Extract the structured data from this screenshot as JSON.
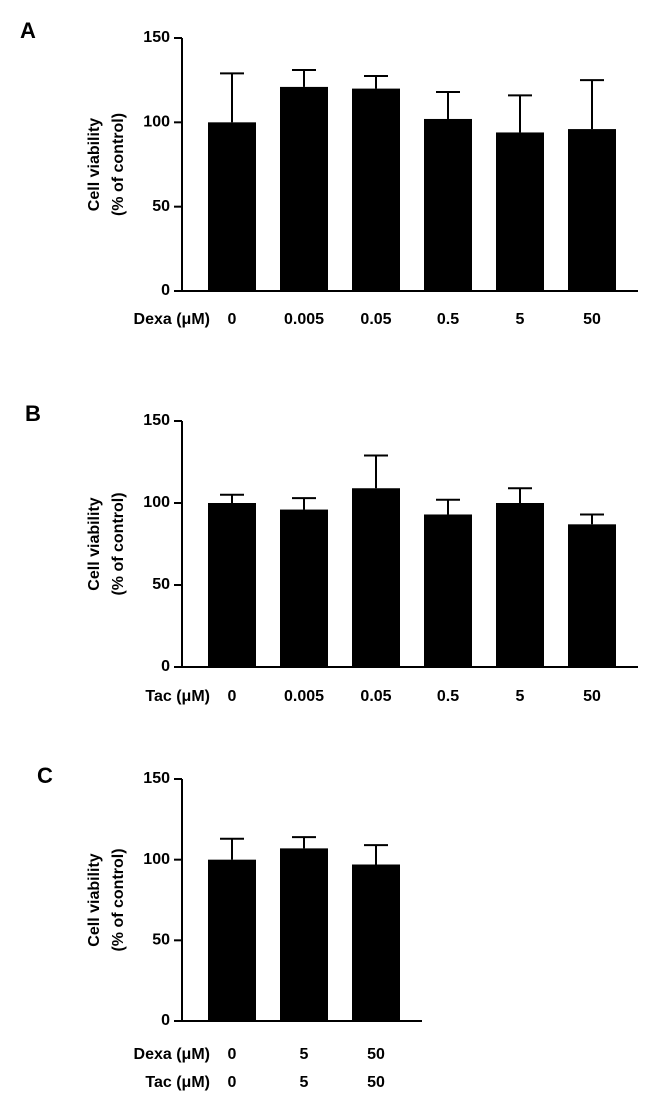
{
  "chart_data": [
    {
      "type": "bar",
      "panel": "A",
      "y_label": [
        "Cell viability",
        "(% of control)"
      ],
      "category_rows": [
        {
          "label": "Dexa (μM)",
          "categories": [
            "0",
            "0.005",
            "0.05",
            "0.5",
            "5",
            "50"
          ]
        }
      ],
      "values": [
        100,
        121,
        120,
        102,
        94,
        96
      ],
      "errors": [
        29,
        10,
        7.5,
        16,
        22,
        29
      ],
      "color": "#000000",
      "ylim": [
        0,
        150
      ],
      "yticks": [
        0,
        50,
        100,
        150
      ]
    },
    {
      "type": "bar",
      "panel": "B",
      "y_label": [
        "Cell viability",
        "(% of control)"
      ],
      "category_rows": [
        {
          "label": "Tac (μM)",
          "categories": [
            "0",
            "0.005",
            "0.05",
            "0.5",
            "5",
            "50"
          ]
        }
      ],
      "values": [
        100,
        96,
        109,
        93,
        100,
        87
      ],
      "errors": [
        5,
        7,
        20,
        9,
        9,
        6
      ],
      "color": "#000000",
      "ylim": [
        0,
        150
      ],
      "yticks": [
        0,
        50,
        100,
        150
      ]
    },
    {
      "type": "bar",
      "panel": "C",
      "y_label": [
        "Cell viability",
        "(% of control)"
      ],
      "category_rows": [
        {
          "label": "Dexa (μM)",
          "categories": [
            "0",
            "5",
            "50"
          ]
        },
        {
          "label": "Tac (μM)",
          "categories": [
            "0",
            "5",
            "50"
          ]
        }
      ],
      "values": [
        100,
        107,
        97
      ],
      "errors": [
        13,
        7,
        12
      ],
      "color": "#000000",
      "ylim": [
        0,
        150
      ],
      "yticks": [
        0,
        50,
        100,
        150
      ]
    }
  ]
}
